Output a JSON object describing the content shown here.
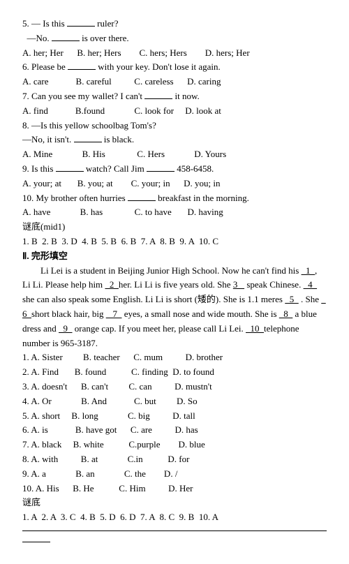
{
  "q5": {
    "line1_pre": "5. — Is this ",
    "line1_post": " ruler?",
    "line2_pre": "  —No. ",
    "line2_post": " is over there.",
    "opts": "A. her; Her      B. her; Hers        C. hers; Hers        D. hers; Her"
  },
  "q6": {
    "line_pre": "6. Please be ",
    "line_post": " with your key. Don't lose it again.",
    "opts": "A. care            B. careful          C. careless      D. caring"
  },
  "q7": {
    "line_pre": "7. Can you see my wallet? I can't ",
    "line_post": " it now.",
    "opts": "A. find            B.found             C. look for     D. look at"
  },
  "q8": {
    "line1": "8. —Is this yellow schoolbag Tom's?",
    "line2_pre": "—No, it isn't. ",
    "line2_post": " is black.",
    "opts": "A. Mine             B. His              C. Hers             D. Yours"
  },
  "q9": {
    "line_pre": "9. Is this ",
    "line_mid": " watch? Call Jim ",
    "line_post": " 458-6458.",
    "opts": "A. your; at       B. you; at        C. your; in      D. you; in"
  },
  "q10": {
    "line_pre": "10. My brother often hurries ",
    "line_post": " breakfast in the morning.",
    "opts": "A. have             B. has              C. to have       D. having"
  },
  "answers1_label": "谜底(mid1)",
  "answers1": "1. B  2. B  3. D  4. B  5. B  6. B  7. A  8. B  9. A  10. C",
  "section2": "Ⅱ. 完形填空",
  "passage": {
    "p1a": "Li Lei is a student in Beijing Junior High School. Now he can't find his ",
    "u1": "  1  ",
    "p1b": ", Li Li. Please help him ",
    "u2": "  2  ",
    "p1c": "her. Li Li is five years old. She ",
    "u3": "3   ",
    "p1d": " speak Chinese. ",
    "u4": "  4  ",
    "p1e": "she can also speak some English. Li Li is short (矮的). She is 1.1 meres ",
    "u5": "  5  ",
    "p1f": " . She ",
    "u6": "  6  ",
    "p1g": "short black hair, big ",
    "u7": "   7  ",
    "p1h": " eyes, a small nose and wide mouth. She is ",
    "u8": "  8  ",
    "p1i": " a blue dress and ",
    "u9": "  9  ",
    "p1j": " orange cap. If you meet her, please call Li Lei. ",
    "u10": "  10  ",
    "p1k": "telephone number is 965-3187."
  },
  "cloze": {
    "o1": "1. A. Sister         B. teacher      C. mum          D. brother",
    "o2": "2. A. Find       B. found           C. finding  D. to found",
    "o3": "3. A. doesn't      B. can't         C. can          D. mustn't",
    "o4": "4. A. Or             B. And            C. but         D. So",
    "o5": "5. A. short     B. long             C. big          D. tall",
    "o6": "6. A. is            B. have got      C. are          D. has",
    "o7": "7. A. black     B. white           C.purple        D. blue",
    "o8": "8. A. with          B. at             C.in           D. for",
    "o9": "9. A. a             B. an             C. the        D. /",
    "o10": "10. A. His      B. He           C. Him          D. Her"
  },
  "answers2_label": "谜底",
  "answers2": "1. A  2. A  3. C  4. B  5. D  6. D  7. A  8. C  9. B  10. A"
}
